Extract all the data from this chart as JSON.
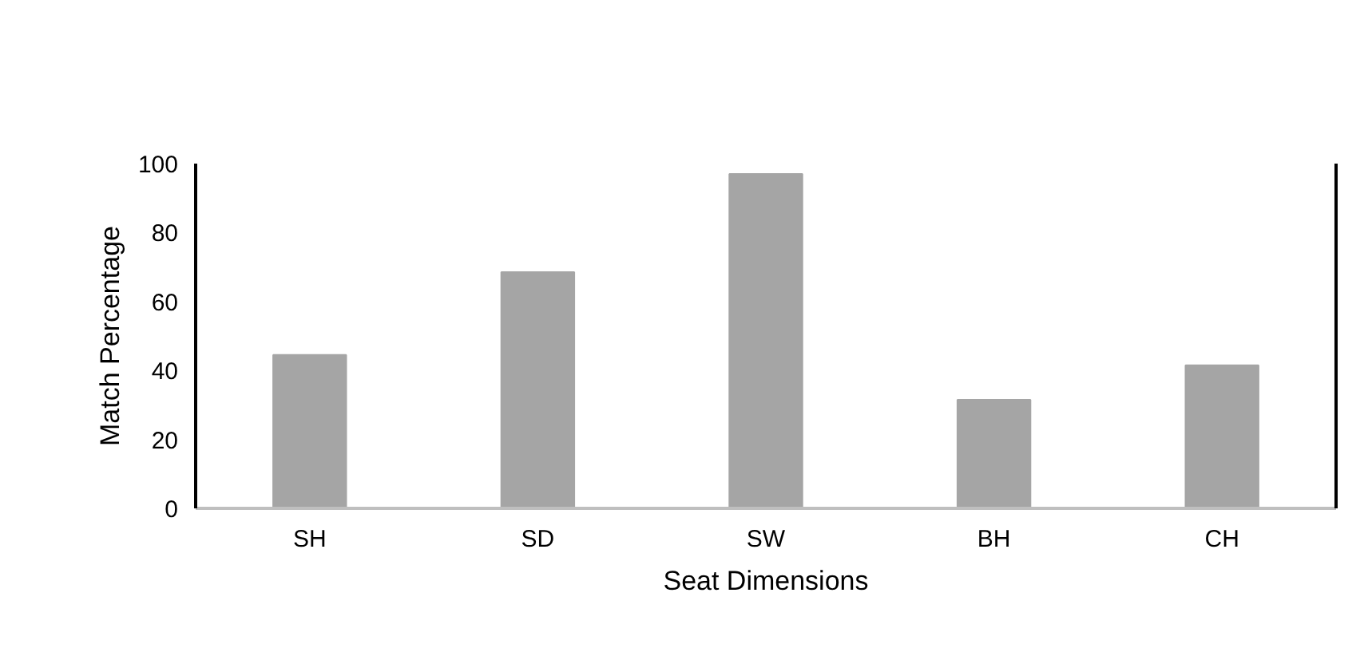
{
  "chart_data": {
    "type": "bar",
    "xlabel": "Seat Dimensions",
    "ylabel": "Match Percentage",
    "categories": [
      "SH",
      "SD",
      "SW",
      "BH",
      "CH"
    ],
    "values": [
      44.5,
      68.5,
      97,
      31.5,
      41.5
    ],
    "color": "#a5a5a5",
    "ylim": [
      0,
      100
    ],
    "yticks": [
      0,
      20,
      40,
      60,
      80,
      100
    ],
    "grid": false
  }
}
